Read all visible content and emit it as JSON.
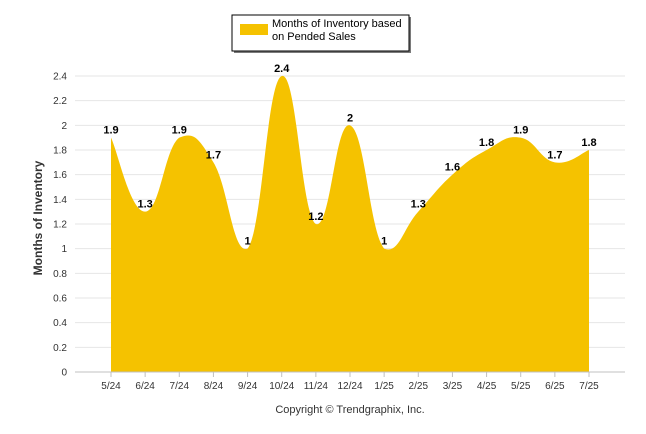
{
  "chart_data": {
    "type": "area",
    "categories": [
      "5/24",
      "6/24",
      "7/24",
      "8/24",
      "9/24",
      "10/24",
      "11/24",
      "12/24",
      "1/25",
      "2/25",
      "3/25",
      "4/25",
      "5/25",
      "6/25",
      "7/25"
    ],
    "series": [
      {
        "name": "Months of Inventory based on Pended Sales",
        "values": [
          1.9,
          1.3,
          1.9,
          1.7,
          1,
          2.4,
          1.2,
          2,
          1,
          1.3,
          1.6,
          1.8,
          1.9,
          1.7,
          1.8
        ],
        "color": "#F5C200"
      }
    ],
    "data_labels": [
      "1.9",
      "1.3",
      "1.9",
      "1.7",
      "1",
      "2.4",
      "1.2",
      "2",
      "1",
      "1.3",
      "1.6",
      "1.8",
      "1.9",
      "1.7",
      "1.8"
    ],
    "ylabel": "Months of Inventory",
    "xlabel": "",
    "ylim": [
      0,
      2.4
    ],
    "yticks": [
      "0",
      "0.2",
      "0.4",
      "0.6",
      "0.8",
      "1",
      "1.2",
      "1.4",
      "1.6",
      "1.8",
      "2",
      "2.2",
      "2.4"
    ],
    "grid": true,
    "legend_position": "top-center",
    "legend_lines": [
      "Months of Inventory based",
      "on Pended Sales"
    ]
  },
  "credit": "Copyright © Trendgraphix, Inc."
}
